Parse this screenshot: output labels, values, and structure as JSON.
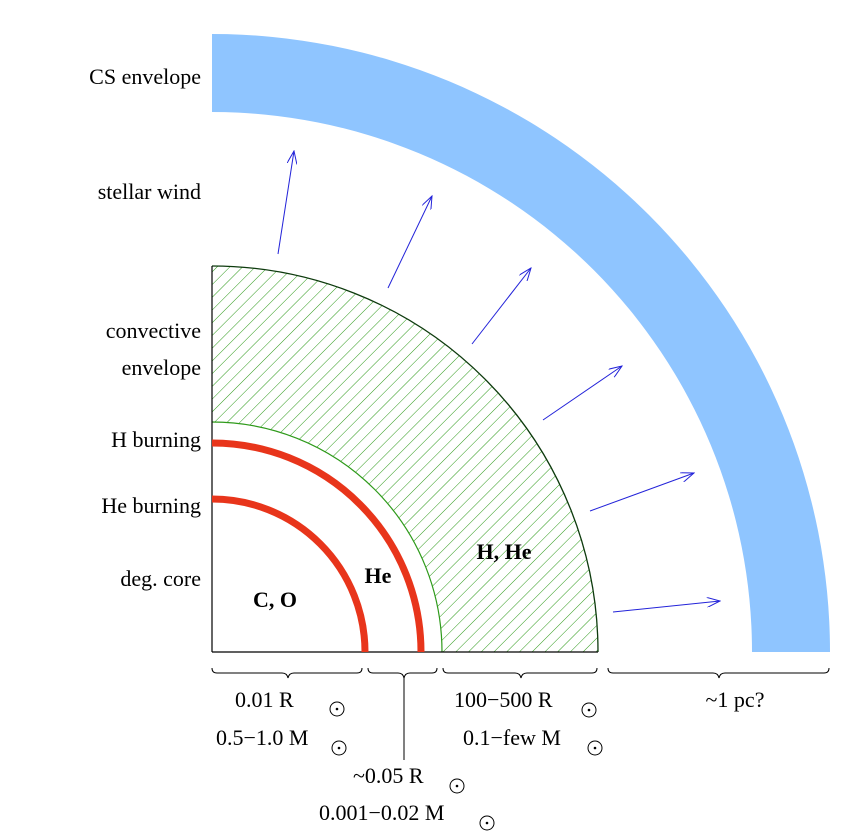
{
  "colors": {
    "cs_envelope": "#8fc5ff",
    "burning_shell": "#e8351b",
    "hatch": "#2e9a1a",
    "wind_arrow": "#2323d9",
    "outline": "#000000"
  },
  "left_labels": {
    "cs_envelope": "CS envelope",
    "stellar_wind": "stellar wind",
    "convective_1": "convective",
    "convective_2": "envelope",
    "h_burning": "H burning",
    "he_burning": "He burning",
    "deg_core": "deg. core"
  },
  "region_labels": {
    "core": "C, O",
    "he_shell": "He",
    "envelope": "H, He"
  },
  "scales": {
    "core_radius": "0.01 R",
    "core_mass": "0.5−1.0 M",
    "shell_radius": "~0.05  R",
    "shell_mass": "0.001−0.02 M",
    "env_radius": "100−500 R",
    "env_mass": "0.1−few M",
    "cs_radius": "~1 pc?"
  },
  "icons": {
    "sun_symbol": "sun-symbol-icon",
    "wind_arrow": "arrow-icon"
  }
}
